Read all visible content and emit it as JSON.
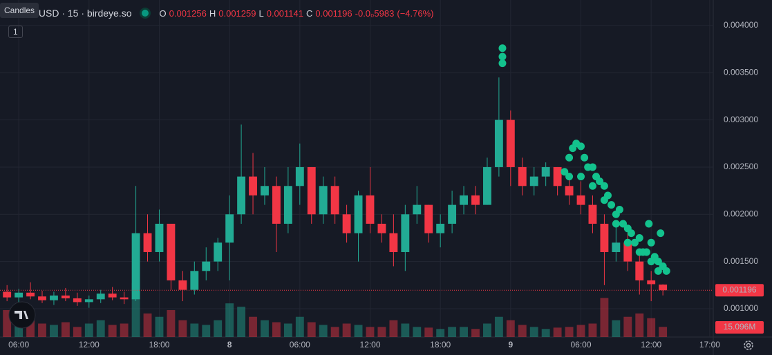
{
  "chart_data": {
    "type": "candlestick",
    "title": "/USD · 15 · birdeye.so",
    "tooltip": "Candles",
    "interval_badge": "1",
    "header": {
      "open_label": "O",
      "open": 0.001256,
      "high_label": "H",
      "high": 0.001259,
      "low_label": "L",
      "low": 0.001141,
      "close_label": "C",
      "close": 0.001196,
      "change": {
        "value": -5.983e-05,
        "label": "-0.0₀5983"
      },
      "change_percent": {
        "value": -4.76,
        "label": "(−4.76%)"
      }
    },
    "up_color": "#22ab94",
    "down_color": "#f23645",
    "x": [
      5,
      6,
      7,
      8,
      9,
      10,
      11,
      12,
      13,
      14,
      15,
      16,
      17,
      18,
      19,
      20,
      21,
      22,
      23,
      24,
      25,
      26,
      27,
      28,
      29,
      30,
      31,
      32,
      33,
      34,
      35,
      36,
      37,
      38,
      39,
      40,
      41,
      42,
      43,
      44,
      45,
      46,
      47,
      48,
      49,
      50,
      51,
      52,
      53,
      54,
      55,
      56,
      57,
      58,
      59,
      60,
      61
    ],
    "ohlc": [
      [
        0.00118,
        0.00125,
        0.00108,
        0.00112
      ],
      [
        0.00112,
        0.00121,
        0.00105,
        0.00117
      ],
      [
        0.00117,
        0.00128,
        0.0011,
        0.00113
      ],
      [
        0.00113,
        0.00119,
        0.00106,
        0.00109
      ],
      [
        0.00109,
        0.00118,
        0.00104,
        0.00114
      ],
      [
        0.00114,
        0.00122,
        0.00108,
        0.00111
      ],
      [
        0.00111,
        0.00117,
        0.00103,
        0.00107
      ],
      [
        0.00107,
        0.00114,
        0.00101,
        0.0011
      ],
      [
        0.0011,
        0.0012,
        0.00106,
        0.00116
      ],
      [
        0.00116,
        0.00123,
        0.00109,
        0.00112
      ],
      [
        0.00112,
        0.00118,
        0.00105,
        0.0011
      ],
      [
        0.0011,
        0.0023,
        0.00108,
        0.0018
      ],
      [
        0.0018,
        0.002,
        0.0015,
        0.0016
      ],
      [
        0.0016,
        0.00205,
        0.0015,
        0.0019
      ],
      [
        0.0019,
        0.0019,
        0.0012,
        0.0013
      ],
      [
        0.0013,
        0.0014,
        0.00108,
        0.0012
      ],
      [
        0.0012,
        0.0015,
        0.00115,
        0.0014
      ],
      [
        0.0014,
        0.00165,
        0.0013,
        0.0015
      ],
      [
        0.0015,
        0.00175,
        0.0014,
        0.0017
      ],
      [
        0.0017,
        0.0022,
        0.0013,
        0.002
      ],
      [
        0.002,
        0.00295,
        0.0019,
        0.0024
      ],
      [
        0.0024,
        0.00265,
        0.002,
        0.0022
      ],
      [
        0.0022,
        0.0025,
        0.0021,
        0.0023
      ],
      [
        0.0023,
        0.0024,
        0.0016,
        0.0019
      ],
      [
        0.0019,
        0.0025,
        0.0018,
        0.0023
      ],
      [
        0.0023,
        0.00275,
        0.0021,
        0.0025
      ],
      [
        0.0025,
        0.0025,
        0.0019,
        0.002
      ],
      [
        0.002,
        0.0024,
        0.0019,
        0.0023
      ],
      [
        0.0023,
        0.0024,
        0.0019,
        0.002
      ],
      [
        0.002,
        0.0021,
        0.0017,
        0.0018
      ],
      [
        0.0018,
        0.00225,
        0.0015,
        0.0022
      ],
      [
        0.0022,
        0.0025,
        0.0018,
        0.0019
      ],
      [
        0.0019,
        0.002,
        0.0017,
        0.0018
      ],
      [
        0.0018,
        0.002,
        0.00145,
        0.0016
      ],
      [
        0.0016,
        0.0021,
        0.0014,
        0.002
      ],
      [
        0.002,
        0.0023,
        0.0019,
        0.0021
      ],
      [
        0.0021,
        0.0021,
        0.0017,
        0.0018
      ],
      [
        0.0018,
        0.002,
        0.00165,
        0.0019
      ],
      [
        0.0019,
        0.00225,
        0.0018,
        0.0021
      ],
      [
        0.0021,
        0.0023,
        0.002,
        0.0022
      ],
      [
        0.0022,
        0.0023,
        0.002,
        0.0021
      ],
      [
        0.0021,
        0.0026,
        0.0021,
        0.0025
      ],
      [
        0.0025,
        0.00345,
        0.0024,
        0.003
      ],
      [
        0.003,
        0.0031,
        0.0023,
        0.0025
      ],
      [
        0.0025,
        0.0026,
        0.0022,
        0.0023
      ],
      [
        0.0023,
        0.0025,
        0.0022,
        0.0024
      ],
      [
        0.0024,
        0.00255,
        0.0023,
        0.0025
      ],
      [
        0.0025,
        0.0025,
        0.0022,
        0.0023
      ],
      [
        0.0023,
        0.0024,
        0.0021,
        0.0022
      ],
      [
        0.0022,
        0.00235,
        0.002,
        0.0021
      ],
      [
        0.0021,
        0.0022,
        0.0018,
        0.0019
      ],
      [
        0.0019,
        0.002,
        0.00125,
        0.0016
      ],
      [
        0.0016,
        0.0019,
        0.0015,
        0.0017
      ],
      [
        0.0017,
        0.0018,
        0.0014,
        0.0015
      ],
      [
        0.0015,
        0.0016,
        0.00115,
        0.0013
      ],
      [
        0.0013,
        0.0014,
        0.00108,
        0.00126
      ],
      [
        0.001256,
        0.001259,
        0.001141,
        0.001196
      ]
    ],
    "volume": [
      40,
      30,
      28,
      20,
      18,
      22,
      15,
      20,
      25,
      18,
      20,
      80,
      35,
      30,
      40,
      25,
      20,
      18,
      25,
      50,
      45,
      30,
      25,
      22,
      20,
      30,
      22,
      18,
      15,
      20,
      18,
      15,
      15,
      25,
      20,
      15,
      14,
      12,
      15,
      15,
      12,
      20,
      30,
      25,
      18,
      15,
      12,
      14,
      15,
      18,
      20,
      58,
      25,
      30,
      35,
      28,
      15.096
    ],
    "volume_last_label": "15.096M",
    "vlim": [
      0,
      150
    ],
    "last_price": 0.001196,
    "signals": {
      "color": "#13c28d",
      "x": [
        47.3,
        47.3,
        47.3,
        52.6,
        53.0,
        53.3,
        53.6,
        54.0,
        54.3,
        54.6,
        55.0,
        55.3,
        55.6,
        56.0,
        56.3,
        56.6,
        57.0,
        57.3,
        57.6,
        58.0,
        58.3,
        58.6,
        59.0,
        59.3,
        59.6,
        60.0,
        60.3,
        60.6,
        61.0,
        53.0,
        54.0,
        55.0,
        56.0,
        57.0,
        58.0,
        59.0,
        60.0,
        60.6,
        61.3,
        59.8,
        60.8
      ],
      "values": [
        0.0036,
        0.00367,
        0.00376,
        0.00245,
        0.0026,
        0.0027,
        0.00275,
        0.00272,
        0.0026,
        0.0025,
        0.0025,
        0.0024,
        0.00235,
        0.0023,
        0.0022,
        0.0021,
        0.002,
        0.00205,
        0.0019,
        0.00185,
        0.0018,
        0.0017,
        0.00175,
        0.0016,
        0.0016,
        0.0017,
        0.00155,
        0.0015,
        0.00145,
        0.0024,
        0.0024,
        0.0023,
        0.00215,
        0.0019,
        0.0017,
        0.0016,
        0.0015,
        0.0014,
        0.0014,
        0.0019,
        0.0018
      ]
    },
    "xlim": [
      4.4,
      65.3
    ],
    "ylim": [
      0.0007,
      0.00427
    ],
    "xticks": [
      {
        "value": 6,
        "label": "06:00"
      },
      {
        "value": 12,
        "label": "12:00"
      },
      {
        "value": 18,
        "label": "18:00"
      },
      {
        "value": 24,
        "label": "8"
      },
      {
        "value": 30,
        "label": "06:00"
      },
      {
        "value": 36,
        "label": "12:00"
      },
      {
        "value": 42,
        "label": "18:00"
      },
      {
        "value": 48,
        "label": "9"
      },
      {
        "value": 54,
        "label": "06:00"
      },
      {
        "value": 60,
        "label": "12:00"
      },
      {
        "value": 65,
        "label": "17:00"
      }
    ],
    "yticks": [
      {
        "value": 0.001,
        "label": "0.001000"
      },
      {
        "value": 0.0015,
        "label": "0.001500"
      },
      {
        "value": 0.002,
        "label": "0.002000"
      },
      {
        "value": 0.0025,
        "label": "0.002500"
      },
      {
        "value": 0.003,
        "label": "0.003000"
      },
      {
        "value": 0.0035,
        "label": "0.003500"
      },
      {
        "value": 0.004,
        "label": "0.004000"
      }
    ],
    "grid": true
  }
}
